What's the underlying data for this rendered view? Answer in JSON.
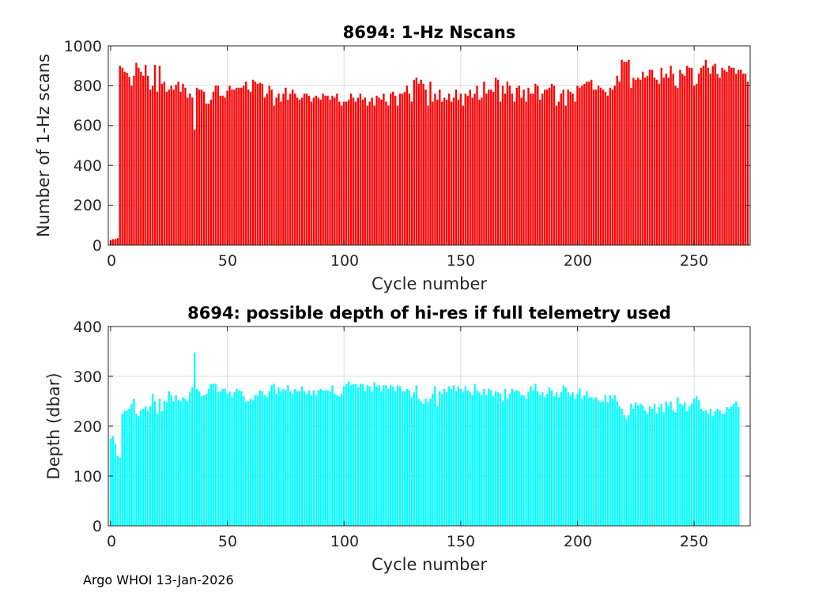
{
  "footer_text": "Argo WHOI 13-Jan-2026",
  "chart_data": [
    {
      "type": "bar",
      "title": "8694: 1-Hz Nscans",
      "xlabel": "Cycle number",
      "ylabel": "Number of 1-Hz scans",
      "xlim": [
        -1,
        274
      ],
      "ylim": [
        0,
        1000
      ],
      "xticks": [
        0,
        50,
        100,
        150,
        200,
        250
      ],
      "yticks": [
        0,
        200,
        400,
        600,
        800,
        1000
      ],
      "grid": true,
      "color": "#ff0000",
      "x_start": 0,
      "values": [
        25,
        30,
        30,
        35,
        900,
        890,
        870,
        865,
        845,
        800,
        850,
        915,
        890,
        870,
        850,
        905,
        850,
        780,
        800,
        905,
        770,
        900,
        810,
        820,
        770,
        780,
        800,
        780,
        805,
        820,
        770,
        810,
        790,
        740,
        760,
        740,
        580,
        790,
        780,
        780,
        770,
        710,
        710,
        730,
        770,
        800,
        800,
        750,
        750,
        740,
        775,
        800,
        780,
        780,
        790,
        790,
        790,
        800,
        820,
        780,
        770,
        830,
        820,
        810,
        815,
        810,
        740,
        760,
        800,
        780,
        700,
        740,
        760,
        720,
        760,
        790,
        730,
        760,
        780,
        760,
        740,
        730,
        740,
        760,
        760,
        750,
        720,
        740,
        750,
        740,
        730,
        760,
        750,
        750,
        730,
        750,
        740,
        760,
        720,
        700,
        720,
        720,
        730,
        760,
        740,
        720,
        740,
        760,
        730,
        740,
        700,
        720,
        740,
        700,
        750,
        740,
        730,
        760,
        720,
        700,
        760,
        770,
        750,
        700,
        760,
        760,
        770,
        800,
        760,
        720,
        830,
        840,
        810,
        830,
        810,
        780,
        700,
        820,
        720,
        760,
        730,
        780,
        720,
        740,
        730,
        760,
        720,
        740,
        780,
        730,
        760,
        700,
        760,
        750,
        780,
        740,
        760,
        800,
        730,
        740,
        820,
        760,
        780,
        780,
        770,
        840,
        830,
        720,
        800,
        760,
        820,
        800,
        760,
        720,
        790,
        800,
        740,
        780,
        720,
        790,
        760,
        760,
        810,
        800,
        730,
        760,
        780,
        780,
        790,
        810,
        800,
        700,
        720,
        760,
        780,
        700,
        780,
        770,
        760,
        720,
        800,
        790,
        800,
        810,
        820,
        820,
        830,
        780,
        780,
        800,
        790,
        780,
        770,
        750,
        790,
        780,
        800,
        850,
        820,
        930,
        920,
        920,
        930,
        790,
        840,
        830,
        840,
        830,
        870,
        840,
        850,
        880,
        880,
        840,
        830,
        810,
        890,
        840,
        860,
        840,
        900,
        860,
        800,
        790,
        880,
        860,
        850,
        900,
        890,
        890,
        800,
        810,
        860,
        890,
        900,
        930,
        890,
        860,
        900,
        910,
        860,
        840,
        890,
        880,
        870,
        900,
        890,
        890,
        860,
        880,
        880,
        860,
        860,
        820
      ],
      "x_tick_labels": [
        "0",
        "50",
        "100",
        "150",
        "200",
        "250"
      ],
      "y_tick_labels": [
        "0",
        "200",
        "400",
        "600",
        "800",
        "1000"
      ]
    },
    {
      "type": "bar",
      "title": "8694: possible depth of hi-res if full telemetry used",
      "xlabel": "Cycle number",
      "ylabel": "Depth (dbar)",
      "xlim": [
        -1,
        274
      ],
      "ylim": [
        0,
        400
      ],
      "xticks": [
        0,
        50,
        100,
        150,
        200,
        250
      ],
      "yticks": [
        0,
        100,
        200,
        300,
        400
      ],
      "grid": true,
      "color": "#00ffff",
      "x_start": 0,
      "values": [
        175,
        180,
        165,
        140,
        137,
        225,
        230,
        232,
        235,
        245,
        255,
        225,
        220,
        232,
        235,
        240,
        230,
        240,
        265,
        250,
        225,
        255,
        230,
        250,
        248,
        270,
        262,
        250,
        262,
        252,
        250,
        258,
        255,
        250,
        268,
        278,
        348,
        275,
        270,
        260,
        262,
        265,
        275,
        285,
        285,
        285,
        268,
        270,
        275,
        275,
        265,
        270,
        258,
        268,
        275,
        272,
        270,
        260,
        250,
        250,
        255,
        252,
        262,
        262,
        272,
        270,
        262,
        258,
        270,
        282,
        285,
        265,
        278,
        270,
        275,
        272,
        282,
        270,
        265,
        275,
        270,
        270,
        280,
        270,
        265,
        272,
        262,
        272,
        262,
        272,
        275,
        272,
        272,
        272,
        270,
        282,
        265,
        262,
        260,
        265,
        280,
        285,
        290,
        282,
        285,
        285,
        278,
        285,
        285,
        270,
        282,
        280,
        270,
        288,
        280,
        282,
        270,
        282,
        282,
        275,
        282,
        280,
        270,
        282,
        280,
        270,
        270,
        275,
        272,
        258,
        268,
        282,
        255,
        250,
        245,
        255,
        248,
        255,
        265,
        280,
        240,
        270,
        265,
        275,
        268,
        280,
        275,
        282,
        270,
        280,
        275,
        268,
        280,
        272,
        268,
        262,
        285,
        272,
        268,
        262,
        275,
        262,
        275,
        272,
        260,
        270,
        268,
        265,
        250,
        275,
        255,
        265,
        275,
        270,
        272,
        270,
        262,
        262,
        255,
        268,
        280,
        272,
        285,
        270,
        262,
        268,
        258,
        265,
        278,
        272,
        260,
        268,
        258,
        268,
        282,
        278,
        268,
        262,
        268,
        255,
        265,
        275,
        255,
        262,
        270,
        258,
        258,
        255,
        258,
        252,
        248,
        250,
        262,
        248,
        262,
        255,
        262,
        250,
        240,
        235,
        222,
        215,
        222,
        245,
        235,
        248,
        242,
        245,
        242,
        232,
        225,
        240,
        235,
        245,
        225,
        238,
        245,
        228,
        250,
        240,
        250,
        232,
        228,
        258,
        245,
        242,
        248,
        230,
        240,
        245,
        255,
        260,
        252,
        235,
        230,
        232,
        225,
        235,
        220,
        230,
        235,
        232,
        225,
        225,
        238,
        235,
        240,
        245,
        250,
        238
      ],
      "x_tick_labels": [
        "0",
        "50",
        "100",
        "150",
        "200",
        "250"
      ],
      "y_tick_labels": [
        "0",
        "100",
        "200",
        "300",
        "400"
      ]
    }
  ]
}
